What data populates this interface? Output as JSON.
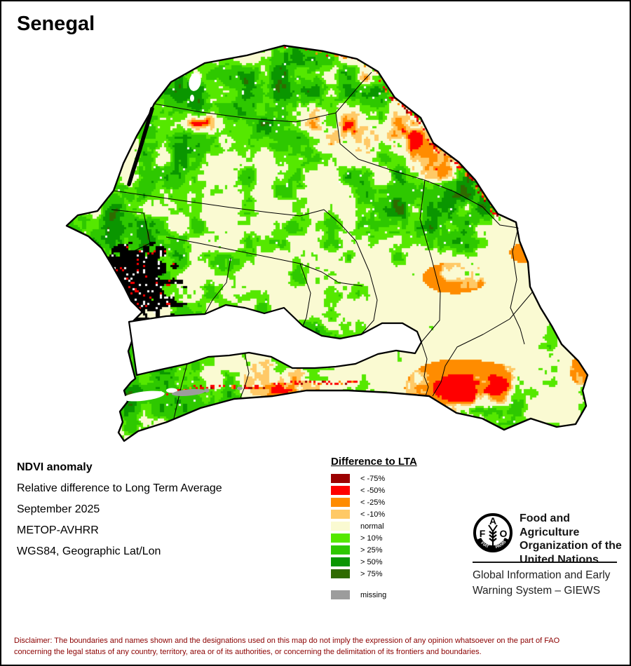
{
  "title": "Senegal",
  "info": {
    "heading": "NDVI anomaly",
    "line1": "Relative difference to Long Term Average",
    "line2": "September 2025",
    "line3": "METOP-AVHRR",
    "line4": "WGS84, Geographic Lat/Lon"
  },
  "legend": {
    "title": "Difference to LTA",
    "items": [
      {
        "label": "< -75%",
        "color": "#9B0000"
      },
      {
        "label": "< -50%",
        "color": "#FF0000"
      },
      {
        "label": "< -25%",
        "color": "#FF8C00"
      },
      {
        "label": "< -10%",
        "color": "#FFC966"
      },
      {
        "label": "normal",
        "color": "#FAFAD2"
      },
      {
        "label": "> 10%",
        "color": "#55E800"
      },
      {
        "label": "> 25%",
        "color": "#2EC800"
      },
      {
        "label": "> 50%",
        "color": "#0A9600"
      },
      {
        "label": "> 75%",
        "color": "#2F6B00"
      }
    ],
    "missing": {
      "label": "missing",
      "color": "#9C9C9C"
    }
  },
  "branding": {
    "org_line1": "Food and Agriculture",
    "org_line2": "Organization of the",
    "org_line3": "United Nations",
    "giews_line1": "Global Information and Early",
    "giews_line2": "Warning System – GIEWS",
    "logo_letter_f": "F",
    "logo_letter_a": "A",
    "logo_letter_o": "O",
    "logo_motto_left": "FIAT",
    "logo_motto_right": "PANIS"
  },
  "disclaimer": {
    "text": "Disclaimer: The boundaries and names shown and the designations used on this map do not imply the expression of any opinion whatsoever on the part of FAO concerning the legal status of any country, territory, area or of its authorities, or concerning the delimitation of its frontiers and boundaries.",
    "color": "#8B0000"
  }
}
